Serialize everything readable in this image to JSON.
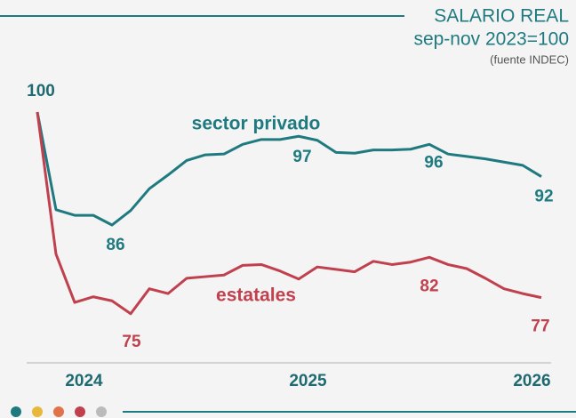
{
  "chart_data": {
    "type": "line",
    "title": "SALARIO REAL",
    "subtitle": "sep-nov 2023=100",
    "source": "(fuente INDEC)",
    "categories": [
      null,
      null,
      "2024",
      null,
      null,
      null,
      null,
      null,
      null,
      null,
      null,
      null,
      null,
      null,
      "2025",
      null,
      null,
      null,
      null,
      null,
      null,
      null,
      null,
      null,
      null,
      null,
      "2026",
      null
    ],
    "series": [
      {
        "name": "sector privado",
        "color": "#1f7a80",
        "values": [
          100,
          87.9,
          87.2,
          87.2,
          86,
          87.8,
          90.5,
          92.2,
          94,
          94.7,
          94.8,
          96,
          96.6,
          96.6,
          97,
          96.5,
          95,
          94.9,
          95.3,
          95.3,
          95.4,
          96,
          94.8,
          94.5,
          94.2,
          93.8,
          93.4,
          92
        ]
      },
      {
        "name": "estatales",
        "color": "#c0404e",
        "values": [
          100,
          82.4,
          76.4,
          77.1,
          76.6,
          75,
          78.1,
          77.5,
          79.4,
          79.6,
          79.8,
          81,
          81.1,
          80.3,
          79.3,
          80.8,
          80.5,
          80.2,
          81.5,
          81.1,
          81.4,
          82,
          81.1,
          80.6,
          79.4,
          78.1,
          77.5,
          77
        ]
      }
    ],
    "ylim": [
      72,
      103
    ]
  }
}
